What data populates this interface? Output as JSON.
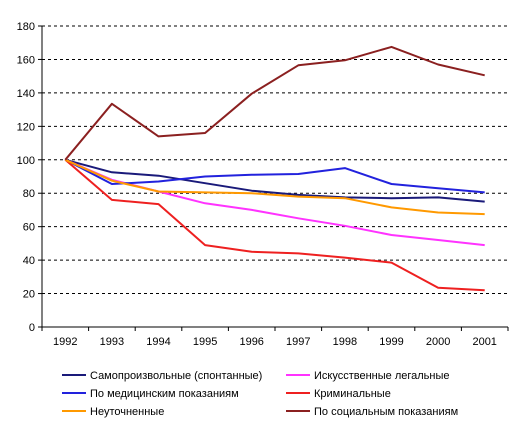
{
  "chart_data": {
    "type": "line",
    "x": [
      "1992",
      "1993",
      "1994",
      "1995",
      "1996",
      "1997",
      "1998",
      "1999",
      "2000",
      "2001"
    ],
    "ylim": [
      0,
      180
    ],
    "yticks": [
      0,
      20,
      40,
      60,
      80,
      100,
      120,
      140,
      160,
      180
    ],
    "grid": "horizontal dashed",
    "legend_position": "bottom",
    "series": [
      {
        "name": "Самопроизвольные (спонтанные)",
        "color": "#1a1a7a",
        "values": [
          100,
          92.5,
          90.5,
          86,
          81.5,
          79,
          77.5,
          77,
          77.5,
          75
        ]
      },
      {
        "name": "Искусственные легальные",
        "color": "#ff33ff",
        "values": [
          100,
          88,
          81,
          74,
          70,
          65,
          60.5,
          55,
          52,
          49
        ]
      },
      {
        "name": "По медицинским показаниям",
        "color": "#2222dd",
        "values": [
          100,
          85.5,
          87,
          90,
          91,
          91.5,
          95,
          85.5,
          83,
          80.5
        ]
      },
      {
        "name": "Криминальные",
        "color": "#ee2020",
        "values": [
          100,
          76,
          73.5,
          49,
          45,
          44,
          41.5,
          38.5,
          23.5,
          22
        ]
      },
      {
        "name": "Неуточненные",
        "color": "#ff9900",
        "values": [
          100,
          87.5,
          81,
          80.5,
          80,
          78,
          77,
          71.5,
          68.5,
          67.5
        ]
      },
      {
        "name": "По социальным показаниям",
        "color": "#8b2020",
        "values": [
          100,
          133.5,
          114,
          116,
          139.5,
          156.5,
          159.5,
          167.5,
          157,
          150.5
        ]
      }
    ]
  }
}
